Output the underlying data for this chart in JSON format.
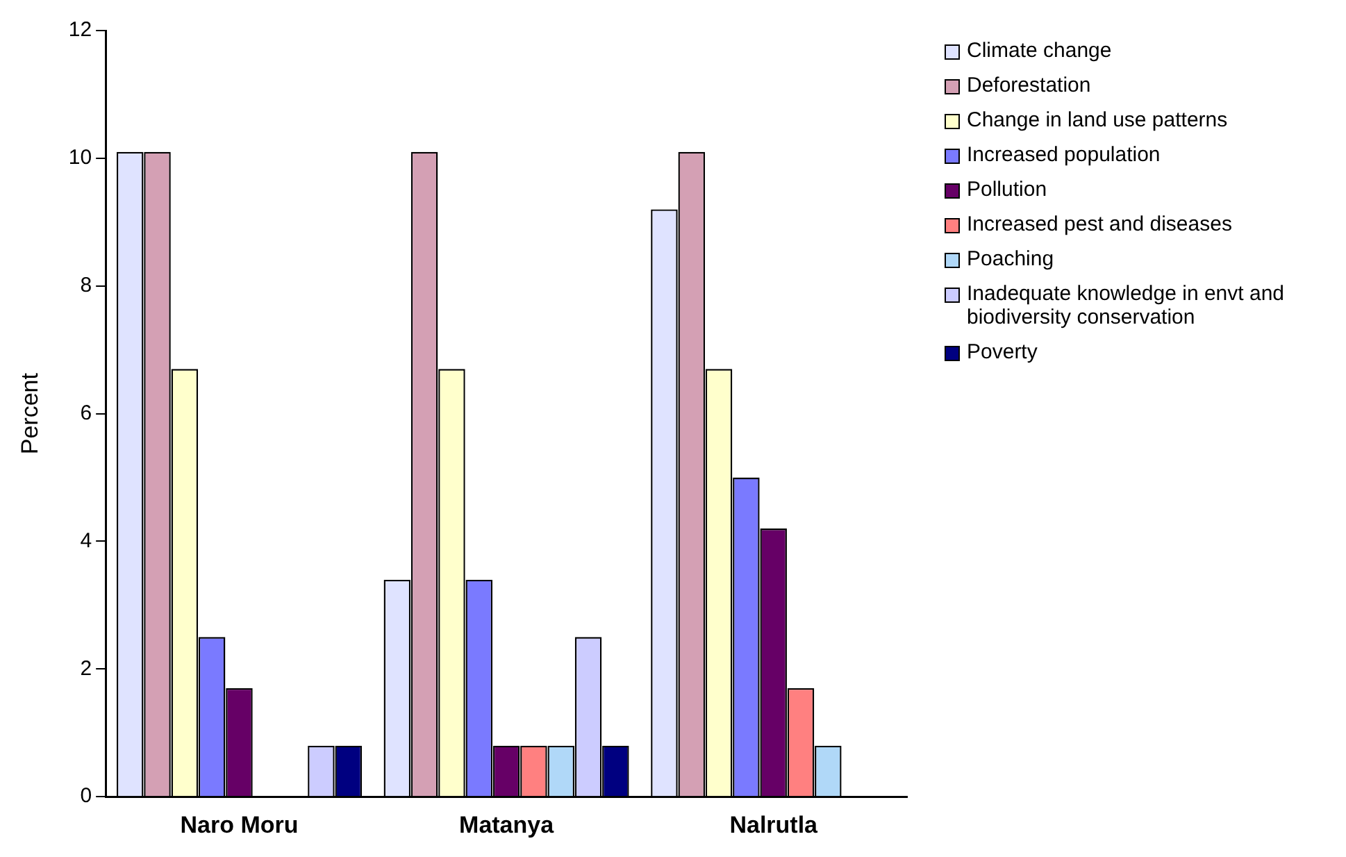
{
  "chart_data": {
    "type": "bar",
    "ylabel": "Percent",
    "categories": [
      "Naro Moru",
      "Matanya",
      "Nalrutla"
    ],
    "series": [
      {
        "name": "Climate change",
        "color": "#dfe3ff",
        "values": [
          10.1,
          3.4,
          9.2
        ]
      },
      {
        "name": "Deforestation",
        "color": "#d4a0b4",
        "values": [
          10.1,
          10.1,
          10.1
        ]
      },
      {
        "name": "Change in land use patterns",
        "color": "#ffffcc",
        "values": [
          6.7,
          6.7,
          6.7
        ]
      },
      {
        "name": "Increased population",
        "color": "#7a7aff",
        "values": [
          2.5,
          3.4,
          5.0
        ]
      },
      {
        "name": "Pollution",
        "color": "#660066",
        "values": [
          1.7,
          0.8,
          4.2
        ]
      },
      {
        "name": "Increased pest and diseases",
        "color": "#ff8080",
        "values": [
          0,
          0.8,
          1.7
        ]
      },
      {
        "name": "Poaching",
        "color": "#b0d8f8",
        "values": [
          0,
          0.8,
          0.8
        ]
      },
      {
        "name": "Inadequate knowledge in envt and biodiversity conservation",
        "color": "#ccccff",
        "values": [
          0.8,
          2.5,
          0
        ]
      },
      {
        "name": "Poverty",
        "color": "#000080",
        "values": [
          0.8,
          0.8,
          0
        ]
      }
    ],
    "ylim": [
      0,
      12
    ],
    "yticks": [
      0,
      2,
      4,
      6,
      8,
      10,
      12
    ],
    "grid": false,
    "legend": "right"
  }
}
